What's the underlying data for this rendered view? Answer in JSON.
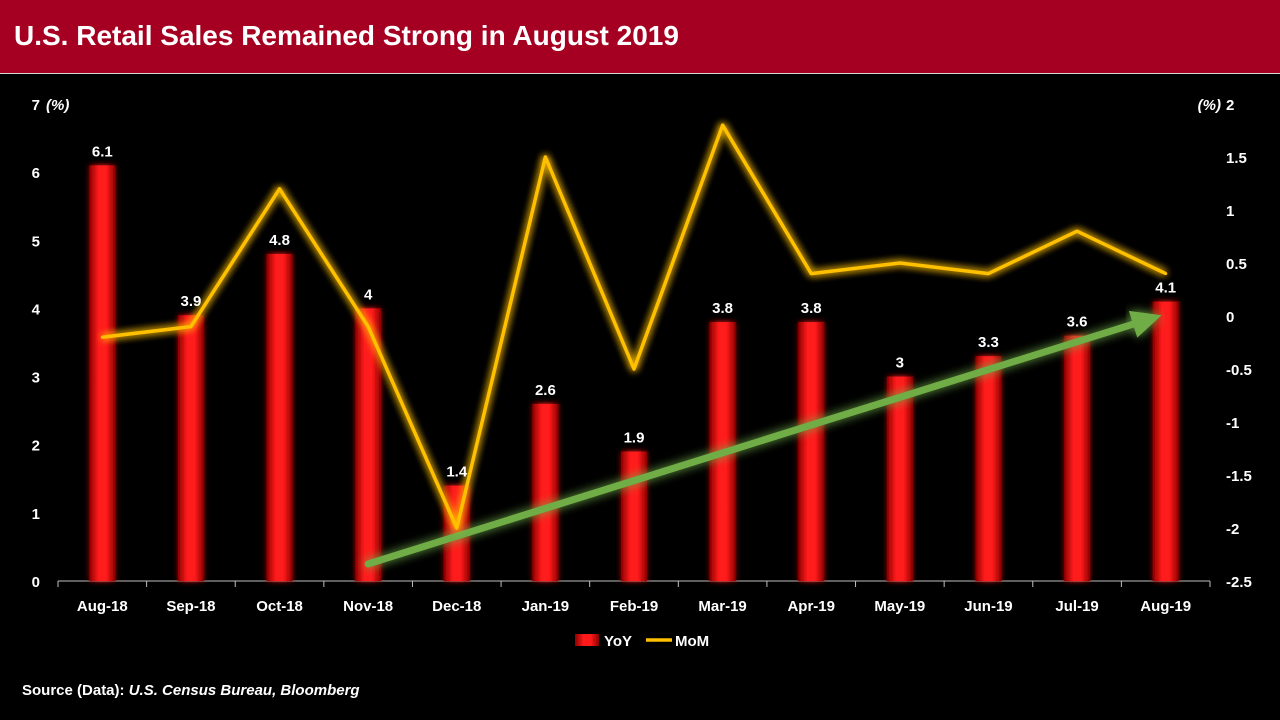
{
  "title": "U.S. Retail Sales Remained Strong in August 2019",
  "source": {
    "label": "Source (Data):",
    "value": "U.S. Census Bureau, Bloomberg"
  },
  "colors": {
    "title_bg": "#a50021",
    "bar": "#ff0000",
    "line": "#ffc000",
    "trend_arrow": "#70ad47",
    "background": "#000000",
    "text": "#ffffff"
  },
  "chart_data": {
    "type": "bar",
    "categories": [
      "Aug-18",
      "Sep-18",
      "Oct-18",
      "Nov-18",
      "Dec-18",
      "Jan-19",
      "Feb-19",
      "Mar-19",
      "Apr-19",
      "May-19",
      "Jun-19",
      "Jul-19",
      "Aug-19"
    ],
    "series": [
      {
        "name": "YoY",
        "type": "bar",
        "axis": "left",
        "values": [
          6.1,
          3.9,
          4.8,
          4,
          1.4,
          2.6,
          1.9,
          3.8,
          3.8,
          3,
          3.3,
          3.6,
          4.1
        ],
        "labels": [
          "6.1",
          "3.9",
          "4.8",
          "4",
          "1.4",
          "2.6",
          "1.9",
          "3.8",
          "3.8",
          "3",
          "3.3",
          "3.6",
          "4.1"
        ]
      },
      {
        "name": "MoM",
        "type": "line",
        "axis": "right",
        "values": [
          -0.2,
          -0.1,
          1.2,
          -0.1,
          -2.0,
          1.5,
          -0.5,
          1.8,
          0.4,
          0.5,
          0.4,
          0.8,
          0.4
        ]
      }
    ],
    "left_axis": {
      "unit_label": "(%)",
      "range": [
        0,
        7
      ],
      "ticks": [
        0,
        1,
        2,
        3,
        4,
        5,
        6,
        7
      ],
      "tick_labels": [
        "0",
        "1",
        "2",
        "3",
        "4",
        "5",
        "6",
        "7"
      ]
    },
    "right_axis": {
      "unit_label": "(%)",
      "range": [
        -2.5,
        2
      ],
      "ticks": [
        -2.5,
        -2,
        -1.5,
        -1,
        -0.5,
        0,
        0.5,
        1,
        1.5,
        2
      ],
      "tick_labels": [
        "-2.5",
        "-2",
        "-1.5",
        "-1",
        "-0.5",
        "0",
        "0.5",
        "1",
        "1.5",
        "2"
      ]
    },
    "trend_arrow": {
      "from": {
        "category": "Nov-18",
        "yoy": 0.25
      },
      "to": {
        "category": "Aug-19",
        "yoy": 3.9
      }
    },
    "grid": false,
    "legend": {
      "position": "bottom",
      "entries": [
        "YoY",
        "MoM"
      ]
    }
  }
}
